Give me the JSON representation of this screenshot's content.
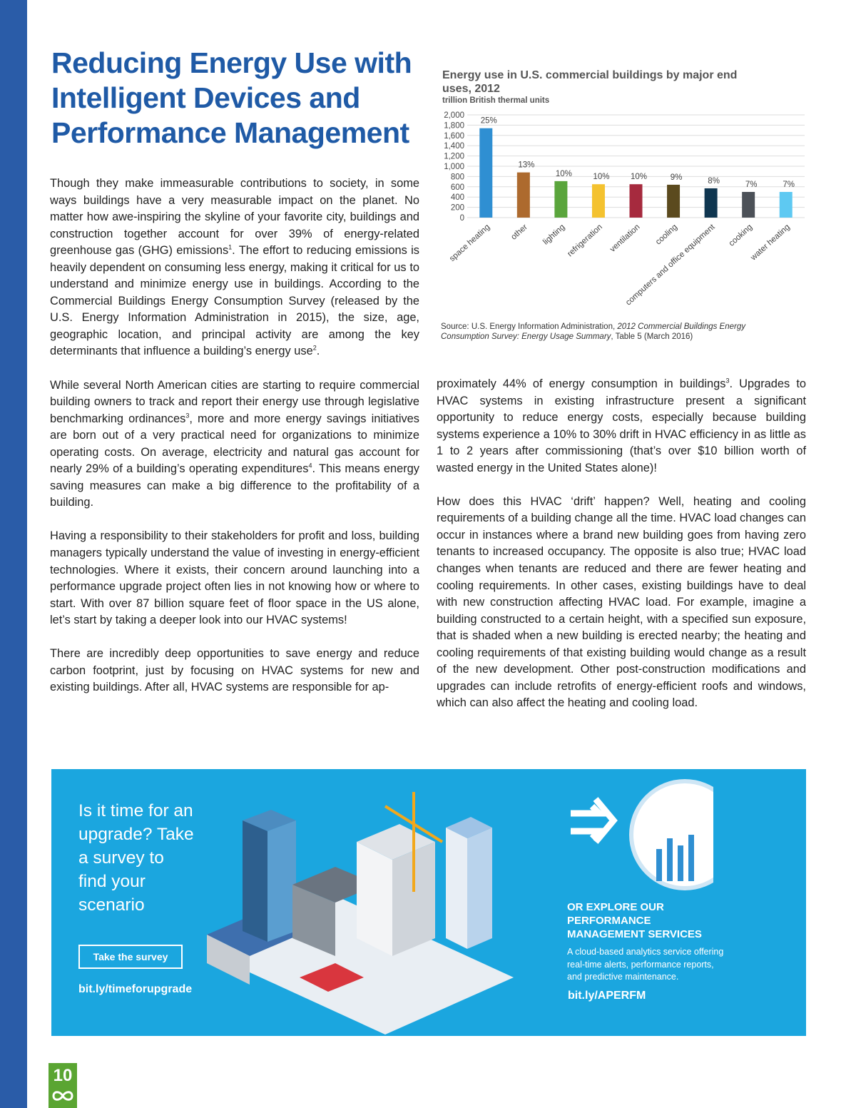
{
  "header": {
    "title_lines": [
      "Reducing Energy Use with",
      "Intelligent Devices and",
      "Performance Management"
    ]
  },
  "body": {
    "left_column": [
      [
        "Though they make immeasurable contributions to society, in some ways buildings have a very measurable impact on the planet. No matter how awe-inspiring the skyline of your favorite city, buildings and construction together account for over 39% of energy-related greenhouse gas (GHG) emissions",
        "1",
        ". The effort to reducing emissions is heavily dependent on consuming less energy, making it critical for us to understand and minimize energy use in buildings. According to the Commercial Buildings Energy Consumption Survey (released by the U.S. Energy Information Administration in 2015), the size, age, geographic location, and principal activity are among the key determinants that influence a building’s energy use",
        "2",
        "."
      ],
      [
        "While several North American cities are starting to require commercial building owners to track and report their energy use through legislative benchmarking ordinances",
        "3",
        ", more and more energy savings initiatives are born out of a very practical need for organizations to minimize operating costs. On average, electricity and natural gas account for nearly 29% of a building’s operating expenditures",
        "4",
        ". This means energy saving measures can make a big difference to the profitability of a building."
      ],
      [
        "Having a responsibility to their stakeholders for profit and loss, building managers typically understand the value of investing in energy-efficient technologies. Where it exists, their concern around launching into a performance upgrade project often lies in not knowing how or where to start. With over 87 billion square feet of floor space in the US alone, let’s start by taking a deeper look into our HVAC systems!"
      ],
      [
        "There are incredibly deep opportunities to save energy and reduce carbon footprint, just by focusing on HVAC systems for new and existing buildings. After all, HVAC systems are responsible for ap-"
      ]
    ],
    "right_column": [
      [
        "proximately 44% of energy consumption in buildings",
        "3",
        ". Upgrades to HVAC systems in existing infrastructure present a significant opportunity to reduce energy costs, especially because building systems experience a 10% to 30% drift in HVAC efficiency in as little as 1 to 2 years after commissioning (that’s over $10 billion worth of wasted energy in the United States alone)!"
      ],
      [
        "How does this HVAC ‘drift’ happen? Well, heating and cooling requirements of a building change all the time. HVAC load changes can occur in instances where a brand new building goes from having zero tenants to increased occupancy. The opposite is also true; HVAC load changes when tenants are reduced and there are fewer heating and cooling requirements. In other cases, existing buildings have to deal with new construction affecting HVAC load. For example, imagine a building constructed to a certain height, with a specified sun exposure, that is shaded when a new building is erected nearby; the heating and cooling requirements of that existing building would change as a result of the new development. Other post-construction modifications and upgrades can include retrofits of energy-efficient roofs and windows, which can also affect the heating and cooling load."
      ]
    ]
  },
  "chart_data": {
    "type": "bar",
    "title": "Energy use in U.S. commercial buildings by major end uses, 2012",
    "subtitle": "trillion British thermal units",
    "categories": [
      "space heating",
      "other",
      "lighting",
      "refrigeration",
      "ventilation",
      "cooling",
      "computers and office equipment",
      "cooking",
      "water heating"
    ],
    "values": [
      1740,
      880,
      710,
      650,
      650,
      640,
      570,
      500,
      500
    ],
    "value_labels": [
      "25%",
      "13%",
      "10%",
      "10%",
      "10%",
      "9%",
      "8%",
      "7%",
      "7%"
    ],
    "colors": [
      "#2f8fd2",
      "#ad6a2e",
      "#5aa53c",
      "#f4c22f",
      "#a62a3e",
      "#5b4a1e",
      "#0f3650",
      "#4c5158",
      "#5ec9f2"
    ],
    "ylim": [
      0,
      2000
    ],
    "yticks": [
      0,
      200,
      400,
      600,
      800,
      {
        "value": 1000,
        "label": "1,000"
      },
      {
        "value": 1200,
        "label": "1,200"
      },
      {
        "value": 1400,
        "label": "1,400"
      },
      {
        "value": 1600,
        "label": "1,600"
      },
      {
        "value": 1800,
        "label": "1,800"
      },
      {
        "value": 2000,
        "label": "2,000"
      }
    ],
    "grid": true,
    "source": [
      "Source: U.S. Energy Information Administration, ",
      "2012 Commercial Buildings Energy Consumption Survey: Energy Usage Summary",
      ", Table 5 (March 2016)"
    ]
  },
  "banner": {
    "survey_heading": "Is it time for an upgrade? Take a survey to find your scenario",
    "survey_button": "Take the survey",
    "survey_link": "bit.ly/timeforupgrade",
    "services_heading": "OR EXPLORE OUR PERFORMANCE MANAGEMENT SERVICES",
    "services_text": "A cloud-based analytics service offering real-time alerts, performance reports, and predictive maintenance.",
    "services_link": "bit.ly/APERFM"
  },
  "footer": {
    "page_number": "10"
  }
}
